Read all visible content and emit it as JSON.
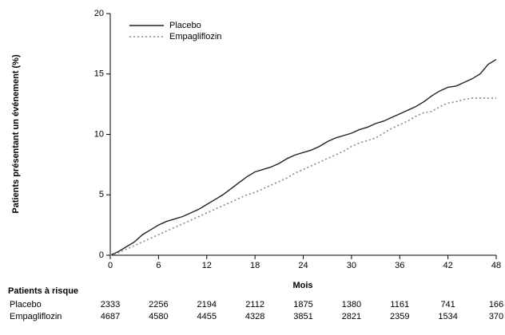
{
  "chart_data": {
    "type": "line",
    "x_label": "Mois",
    "y_label": "Patients présentant un événement (%)",
    "x": [
      0,
      1,
      2,
      3,
      4,
      5,
      6,
      7,
      8,
      9,
      10,
      11,
      12,
      13,
      14,
      15,
      16,
      17,
      18,
      19,
      20,
      21,
      22,
      23,
      24,
      25,
      26,
      27,
      28,
      29,
      30,
      31,
      32,
      33,
      34,
      35,
      36,
      37,
      38,
      39,
      40,
      41,
      42,
      43,
      44,
      45,
      46,
      47,
      48
    ],
    "series": [
      {
        "name": "Placebo",
        "color": "#222222",
        "line_style": "solid",
        "values": [
          0,
          0.3,
          0.7,
          1.1,
          1.7,
          2.1,
          2.5,
          2.8,
          3.0,
          3.2,
          3.5,
          3.8,
          4.2,
          4.6,
          5.0,
          5.5,
          6.0,
          6.5,
          6.9,
          7.1,
          7.3,
          7.6,
          8.0,
          8.3,
          8.5,
          8.7,
          9.0,
          9.4,
          9.7,
          9.9,
          10.1,
          10.4,
          10.6,
          10.9,
          11.1,
          11.4,
          11.7,
          12.0,
          12.3,
          12.7,
          13.2,
          13.6,
          13.9,
          14.0,
          14.3,
          14.6,
          15.0,
          15.8,
          16.2
        ]
      },
      {
        "name": "Empagliflozin",
        "color": "#888888",
        "line_style": "dotted",
        "values": [
          0,
          0.2,
          0.5,
          0.8,
          1.1,
          1.4,
          1.7,
          2.0,
          2.3,
          2.6,
          2.9,
          3.2,
          3.5,
          3.8,
          4.1,
          4.4,
          4.7,
          5.0,
          5.2,
          5.5,
          5.8,
          6.1,
          6.4,
          6.8,
          7.1,
          7.4,
          7.7,
          8.0,
          8.3,
          8.6,
          9.0,
          9.3,
          9.5,
          9.7,
          10.1,
          10.5,
          10.8,
          11.1,
          11.5,
          11.8,
          11.9,
          12.3,
          12.6,
          12.7,
          12.9,
          13.0,
          13.0,
          13.0,
          13.0
        ]
      }
    ],
    "xlim": [
      0,
      48
    ],
    "xticks": [
      0,
      6,
      12,
      18,
      24,
      30,
      36,
      42,
      48
    ],
    "ylim": [
      0,
      20
    ],
    "yticks": [
      0,
      5,
      10,
      15,
      20
    ],
    "legend": "upper left",
    "risk_table": {
      "title": "Patients à risque",
      "rows": [
        {
          "name": "Placebo",
          "values": [
            2333,
            2256,
            2194,
            2112,
            1875,
            1380,
            1161,
            741,
            166
          ]
        },
        {
          "name": "Empagliflozin",
          "values": [
            4687,
            4580,
            4455,
            4328,
            3851,
            2821,
            2359,
            1534,
            370
          ]
        }
      ]
    }
  }
}
